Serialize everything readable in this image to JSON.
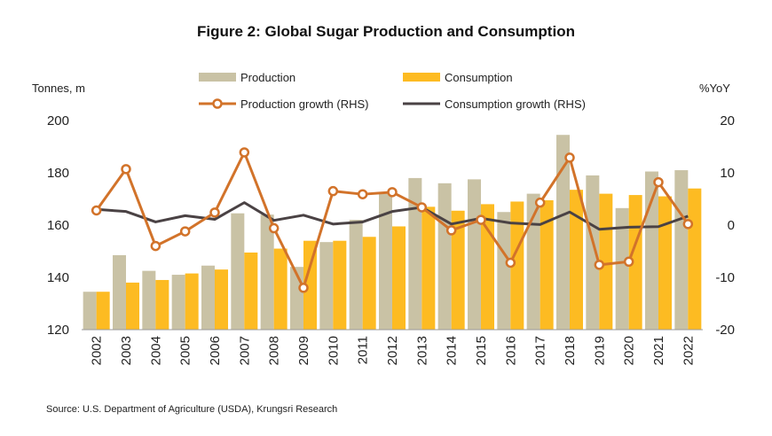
{
  "colors": {
    "production": "#c9c2a5",
    "consumption": "#fdbb22",
    "production_growth": "#d2732a",
    "consumption_growth": "#4a4244",
    "axis": "#555555"
  },
  "figure": {
    "title": "Figure 2: Global Sugar Production and Consumption",
    "source": "Source: U.S. Department of Agriculture (USDA), Krungsri Research"
  },
  "chart_data": {
    "type": "bar",
    "title": "Figure 2: Global Sugar Production and Consumption",
    "categories": [
      "2002",
      "2003",
      "2004",
      "2005",
      "2006",
      "2007",
      "2008",
      "2009",
      "2010",
      "2011",
      "2012",
      "2013",
      "2014",
      "2015",
      "2016",
      "2017",
      "2018",
      "2019",
      "2020",
      "2021",
      "2022"
    ],
    "y_left": {
      "label": "Tonnes, m",
      "range": [
        120,
        200
      ],
      "ticks": [
        "120",
        "140",
        "160",
        "180",
        "200"
      ]
    },
    "y_right": {
      "label": "%YoY",
      "range": [
        -20,
        20
      ],
      "ticks": [
        "-20",
        "-10",
        "0",
        "10",
        "20"
      ]
    },
    "grid": false,
    "legend_position": "top-center",
    "series": [
      {
        "name": "Production",
        "type": "bar",
        "axis": "left",
        "values": [
          134.5,
          148.5,
          142.5,
          141,
          144.5,
          164.5,
          164,
          144,
          153.5,
          162,
          172,
          178,
          176,
          177.5,
          165,
          172,
          194.5,
          179,
          166.5,
          180.5,
          181
        ]
      },
      {
        "name": "Consumption",
        "type": "bar",
        "axis": "left",
        "values": [
          134.5,
          138,
          139,
          141.5,
          143,
          149.5,
          151,
          154,
          154,
          155.5,
          159.5,
          167,
          165.5,
          168,
          169,
          169.5,
          173.5,
          172,
          171.5,
          171,
          174
        ]
      },
      {
        "name": "Production growth (RHS)",
        "type": "line",
        "axis": "right",
        "markers": true,
        "values": [
          2.8,
          10.7,
          -4,
          -1.2,
          2.4,
          13.9,
          -0.6,
          -12,
          6.5,
          5.9,
          6.3,
          3.4,
          -1,
          1,
          -7.2,
          4.3,
          12.9,
          -7.6,
          -7,
          8.2,
          0.2
        ]
      },
      {
        "name": "Consumption growth (RHS)",
        "type": "line",
        "axis": "right",
        "markers": false,
        "values": [
          3,
          2.6,
          0.6,
          1.8,
          1.1,
          4.3,
          0.9,
          1.9,
          0.2,
          0.6,
          2.6,
          3.4,
          0.2,
          1.3,
          0.4,
          0.1,
          2.5,
          -0.8,
          -0.4,
          -0.3,
          1.7
        ]
      }
    ]
  }
}
